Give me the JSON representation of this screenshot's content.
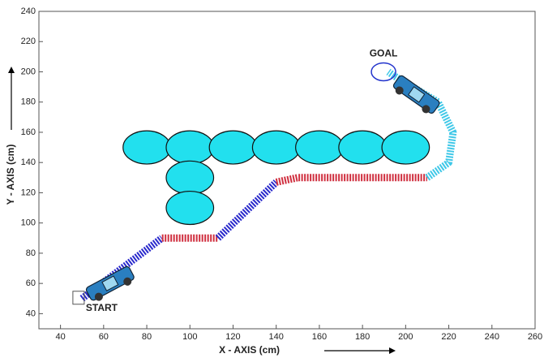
{
  "chart_data": {
    "type": "path",
    "xlabel": "X - AXIS (cm)",
    "ylabel": "Y - AXIS (cm)",
    "xlim": [
      30,
      260
    ],
    "ylim": [
      30,
      240
    ],
    "xticks": [
      40,
      60,
      80,
      100,
      120,
      140,
      160,
      180,
      200,
      220,
      240,
      260
    ],
    "yticks": [
      40,
      60,
      80,
      100,
      120,
      140,
      160,
      180,
      200,
      220,
      240
    ],
    "obstacles": [
      {
        "x": 80,
        "y": 150,
        "r": 11
      },
      {
        "x": 100,
        "y": 150,
        "r": 11
      },
      {
        "x": 120,
        "y": 150,
        "r": 11
      },
      {
        "x": 140,
        "y": 150,
        "r": 11
      },
      {
        "x": 160,
        "y": 150,
        "r": 11
      },
      {
        "x": 180,
        "y": 150,
        "r": 11
      },
      {
        "x": 200,
        "y": 150,
        "r": 11
      },
      {
        "x": 100,
        "y": 130,
        "r": 11
      },
      {
        "x": 100,
        "y": 110,
        "r": 11
      }
    ],
    "obstacle_color": "#22e0ee",
    "series": [
      {
        "color": "#2a2acc",
        "x": [
          50,
          87
        ],
        "y": [
          50,
          90
        ]
      },
      {
        "color": "#d03040",
        "x": [
          87,
          113
        ],
        "y": [
          90,
          90
        ]
      },
      {
        "color": "#2a2acc",
        "x": [
          113,
          140
        ],
        "y": [
          90,
          127
        ]
      },
      {
        "color": "#d03040",
        "x": [
          140,
          150,
          210
        ],
        "y": [
          127,
          130,
          130
        ]
      },
      {
        "color": "#40c8e8",
        "x": [
          210,
          220,
          222,
          215,
          195,
          192
        ],
        "y": [
          130,
          140,
          160,
          180,
          197,
          200
        ]
      }
    ],
    "start": {
      "label": "START",
      "x": 48,
      "y": 50
    },
    "goal": {
      "label": "GOAL",
      "x": 192,
      "y": 200
    }
  }
}
